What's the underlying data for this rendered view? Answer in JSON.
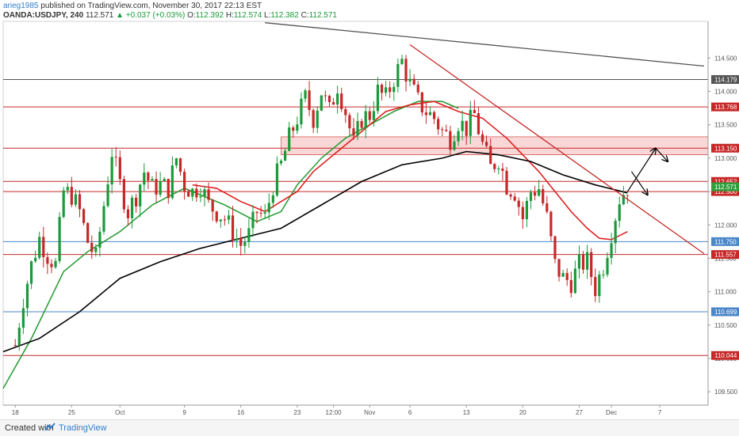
{
  "header": {
    "user": "arieg1985",
    "published": " published on TradingView.com, November 30, 2017 22:13 EST",
    "symbol": "OANDA:USDJPY, 240",
    "last": "112.571",
    "change": "+0.037 (+0.03%)",
    "o_label": "O:",
    "o": "112.392",
    "h_label": "H:",
    "h": "112.574",
    "l_label": "L:",
    "l": "112.382",
    "c_label": "C:",
    "c": "112.571"
  },
  "footer": {
    "created_with": "Created with",
    "brand": "TradingView"
  },
  "colors": {
    "up_candle": "#1a9a3a",
    "down_candle": "#c62828",
    "ma_green": "#2e9e3a",
    "ma_red": "#e02020",
    "ma_black": "#000000",
    "level_red": "#c62828",
    "level_blue": "#4a86c8",
    "level_gray": "#555555",
    "zone_fill": "#f7c9c9"
  },
  "chart_data": {
    "type": "candlestick",
    "symbol": "OANDA:USDJPY",
    "timeframe": "240",
    "ylim": [
      109.3,
      115.05
    ],
    "y_ticks": [
      109.5,
      110.0,
      110.5,
      111.0,
      111.5,
      112.0,
      112.5,
      113.0,
      113.5,
      114.0,
      114.5
    ],
    "y_tick_labels": [
      "109.500",
      "110.000",
      "110.500",
      "111.000",
      "111.500",
      "112.000",
      "112.500",
      "113.000",
      "113.500",
      "114.000",
      "114.500"
    ],
    "x_ticks": [
      {
        "label": "18",
        "x": 0
      },
      {
        "label": "25",
        "x": 7
      },
      {
        "label": "Oct",
        "x": 13
      },
      {
        "label": "9",
        "x": 21
      },
      {
        "label": "16",
        "x": 28
      },
      {
        "label": "23",
        "x": 35
      },
      {
        "label": "12:00",
        "x": 39.5
      },
      {
        "label": "Nov",
        "x": 44
      },
      {
        "label": "6",
        "x": 49
      },
      {
        "label": "13",
        "x": 56
      },
      {
        "label": "20",
        "x": 63
      },
      {
        "label": "27",
        "x": 70
      },
      {
        "label": "Dec",
        "x": 74
      },
      {
        "label": "7",
        "x": 80
      }
    ],
    "x_range": [
      -1.5,
      86
    ],
    "price_points": [
      {
        "x": 0,
        "y": 110.2
      },
      {
        "x": 1,
        "y": 110.9
      },
      {
        "x": 2,
        "y": 111.4
      },
      {
        "x": 3,
        "y": 111.8
      },
      {
        "x": 4,
        "y": 111.55
      },
      {
        "x": 5,
        "y": 111.4
      },
      {
        "x": 6,
        "y": 112.5
      },
      {
        "x": 7,
        "y": 112.45
      },
      {
        "x": 8,
        "y": 112.2
      },
      {
        "x": 9,
        "y": 111.75
      },
      {
        "x": 10,
        "y": 111.5
      },
      {
        "x": 11,
        "y": 112.3
      },
      {
        "x": 12,
        "y": 113.1
      },
      {
        "x": 13,
        "y": 112.6
      },
      {
        "x": 14,
        "y": 112.2
      },
      {
        "x": 15,
        "y": 112.45
      },
      {
        "x": 16,
        "y": 112.8
      },
      {
        "x": 17,
        "y": 112.55
      },
      {
        "x": 18,
        "y": 112.6
      },
      {
        "x": 19,
        "y": 112.55
      },
      {
        "x": 20,
        "y": 113.0
      },
      {
        "x": 21,
        "y": 112.6
      },
      {
        "x": 22,
        "y": 112.5
      },
      {
        "x": 23,
        "y": 112.6
      },
      {
        "x": 24,
        "y": 112.3
      },
      {
        "x": 25,
        "y": 112.2
      },
      {
        "x": 26,
        "y": 112.1
      },
      {
        "x": 27,
        "y": 111.9
      },
      {
        "x": 28,
        "y": 111.7
      },
      {
        "x": 29,
        "y": 111.85
      },
      {
        "x": 30,
        "y": 112.2
      },
      {
        "x": 31,
        "y": 112.1
      },
      {
        "x": 32,
        "y": 112.6
      },
      {
        "x": 33,
        "y": 112.9
      },
      {
        "x": 34,
        "y": 113.3
      },
      {
        "x": 35,
        "y": 113.6
      },
      {
        "x": 36,
        "y": 113.9
      },
      {
        "x": 37,
        "y": 113.6
      },
      {
        "x": 38,
        "y": 114.0
      },
      {
        "x": 39,
        "y": 113.7
      },
      {
        "x": 40,
        "y": 114.1
      },
      {
        "x": 41,
        "y": 113.7
      },
      {
        "x": 42,
        "y": 113.2
      },
      {
        "x": 43,
        "y": 113.6
      },
      {
        "x": 44,
        "y": 113.65
      },
      {
        "x": 45,
        "y": 114.0
      },
      {
        "x": 46,
        "y": 113.9
      },
      {
        "x": 47,
        "y": 114.2
      },
      {
        "x": 48,
        "y": 114.45
      },
      {
        "x": 49,
        "y": 114.1
      },
      {
        "x": 50,
        "y": 113.85
      },
      {
        "x": 51,
        "y": 113.7
      },
      {
        "x": 52,
        "y": 113.6
      },
      {
        "x": 53,
        "y": 113.4
      },
      {
        "x": 54,
        "y": 113.3
      },
      {
        "x": 55,
        "y": 113.55
      },
      {
        "x": 56,
        "y": 113.45
      },
      {
        "x": 57,
        "y": 113.65
      },
      {
        "x": 58,
        "y": 113.2
      },
      {
        "x": 59,
        "y": 112.85
      },
      {
        "x": 60,
        "y": 113.0
      },
      {
        "x": 61,
        "y": 112.6
      },
      {
        "x": 62,
        "y": 112.5
      },
      {
        "x": 63,
        "y": 112.1
      },
      {
        "x": 64,
        "y": 112.5
      },
      {
        "x": 65,
        "y": 112.55
      },
      {
        "x": 66,
        "y": 112.1
      },
      {
        "x": 67,
        "y": 111.4
      },
      {
        "x": 68,
        "y": 111.2
      },
      {
        "x": 69,
        "y": 111.15
      },
      {
        "x": 70,
        "y": 111.4
      },
      {
        "x": 71,
        "y": 111.45
      },
      {
        "x": 72,
        "y": 111.05
      },
      {
        "x": 73,
        "y": 111.4
      },
      {
        "x": 74,
        "y": 111.9
      },
      {
        "x": 75,
        "y": 112.4
      },
      {
        "x": 76,
        "y": 112.57
      }
    ],
    "moving_averages": [
      {
        "name": "MA green",
        "color": "#2e9e3a",
        "points": [
          {
            "x": -1.5,
            "y": 109.55
          },
          {
            "x": 2,
            "y": 110.3
          },
          {
            "x": 6,
            "y": 111.3
          },
          {
            "x": 9,
            "y": 111.6
          },
          {
            "x": 13,
            "y": 111.9
          },
          {
            "x": 17,
            "y": 112.3
          },
          {
            "x": 21,
            "y": 112.55
          },
          {
            "x": 26,
            "y": 112.3
          },
          {
            "x": 30,
            "y": 112.05
          },
          {
            "x": 33,
            "y": 112.2
          },
          {
            "x": 35,
            "y": 112.6
          },
          {
            "x": 38,
            "y": 113.0
          },
          {
            "x": 41,
            "y": 113.3
          },
          {
            "x": 44,
            "y": 113.5
          },
          {
            "x": 47,
            "y": 113.7
          },
          {
            "x": 50,
            "y": 113.85
          },
          {
            "x": 53,
            "y": 113.85
          },
          {
            "x": 55,
            "y": 113.75
          }
        ]
      },
      {
        "name": "MA red",
        "color": "#e02020",
        "points": [
          {
            "x": 22,
            "y": 112.6
          },
          {
            "x": 25,
            "y": 112.55
          },
          {
            "x": 28,
            "y": 112.35
          },
          {
            "x": 31,
            "y": 112.2
          },
          {
            "x": 33,
            "y": 112.35
          },
          {
            "x": 35,
            "y": 112.5
          },
          {
            "x": 37,
            "y": 112.8
          },
          {
            "x": 40,
            "y": 113.1
          },
          {
            "x": 43,
            "y": 113.4
          },
          {
            "x": 46,
            "y": 113.7
          },
          {
            "x": 49,
            "y": 113.8
          },
          {
            "x": 52,
            "y": 113.85
          },
          {
            "x": 55,
            "y": 113.7
          },
          {
            "x": 58,
            "y": 113.6
          },
          {
            "x": 61,
            "y": 113.3
          },
          {
            "x": 63,
            "y": 113.05
          },
          {
            "x": 65,
            "y": 112.8
          },
          {
            "x": 67,
            "y": 112.5
          },
          {
            "x": 69,
            "y": 112.2
          },
          {
            "x": 71,
            "y": 111.95
          },
          {
            "x": 72.5,
            "y": 111.8
          },
          {
            "x": 74,
            "y": 111.78
          },
          {
            "x": 76,
            "y": 111.9
          }
        ]
      },
      {
        "name": "MA black",
        "color": "#000000",
        "points": [
          {
            "x": -1.5,
            "y": 110.1
          },
          {
            "x": 3,
            "y": 110.3
          },
          {
            "x": 8,
            "y": 110.7
          },
          {
            "x": 13,
            "y": 111.2
          },
          {
            "x": 18,
            "y": 111.45
          },
          {
            "x": 23,
            "y": 111.65
          },
          {
            "x": 28,
            "y": 111.8
          },
          {
            "x": 33,
            "y": 111.95
          },
          {
            "x": 38,
            "y": 112.3
          },
          {
            "x": 43,
            "y": 112.65
          },
          {
            "x": 48,
            "y": 112.9
          },
          {
            "x": 53,
            "y": 113.0
          },
          {
            "x": 56,
            "y": 113.1
          },
          {
            "x": 60,
            "y": 113.05
          },
          {
            "x": 64,
            "y": 112.95
          },
          {
            "x": 68,
            "y": 112.75
          },
          {
            "x": 72,
            "y": 112.6
          },
          {
            "x": 76,
            "y": 112.48
          }
        ]
      }
    ],
    "levels": [
      {
        "value": 114.179,
        "label": "114.179",
        "color": "#555555"
      },
      {
        "value": 113.768,
        "label": "113.768",
        "color": "#c62828"
      },
      {
        "value": 113.15,
        "label": "113.150",
        "color": "#c62828"
      },
      {
        "value": 112.652,
        "label": "112.652",
        "color": "#c62828"
      },
      {
        "value": 112.5,
        "label": "112.500",
        "color": "#c62828"
      },
      {
        "value": 111.75,
        "label": "111.750",
        "color": "#4a86c8"
      },
      {
        "value": 111.557,
        "label": "111.557",
        "color": "#c62828"
      },
      {
        "value": 110.699,
        "label": "110.699",
        "color": "#4a86c8"
      },
      {
        "value": 110.044,
        "label": "110.044",
        "color": "#c62828"
      }
    ],
    "last_price": {
      "value": 112.571,
      "label": "112.571",
      "color": "#2e9e3a"
    },
    "zone": {
      "x_from": 33,
      "y_from": 113.05,
      "y_to": 113.32
    },
    "trendlines": [
      {
        "name": "red downtrend",
        "color": "#c62828",
        "from": {
          "x": 49,
          "y": 114.7
        },
        "to": {
          "x": 85.5,
          "y": 111.57
        }
      },
      {
        "name": "gray downtrend",
        "color": "#555555",
        "from": {
          "x": 31,
          "y": 115.03
        },
        "to": {
          "x": 85.5,
          "y": 114.38
        }
      }
    ],
    "projection_arrows": [
      {
        "from": {
          "x": 76,
          "y": 112.5
        },
        "to": {
          "x": 79.5,
          "y": 113.15
        }
      },
      {
        "from": {
          "x": 79.5,
          "y": 113.15
        },
        "to": {
          "x": 81,
          "y": 112.95
        }
      },
      {
        "from": {
          "x": 76.5,
          "y": 112.8
        },
        "to": {
          "x": 78.5,
          "y": 112.45
        }
      }
    ]
  }
}
